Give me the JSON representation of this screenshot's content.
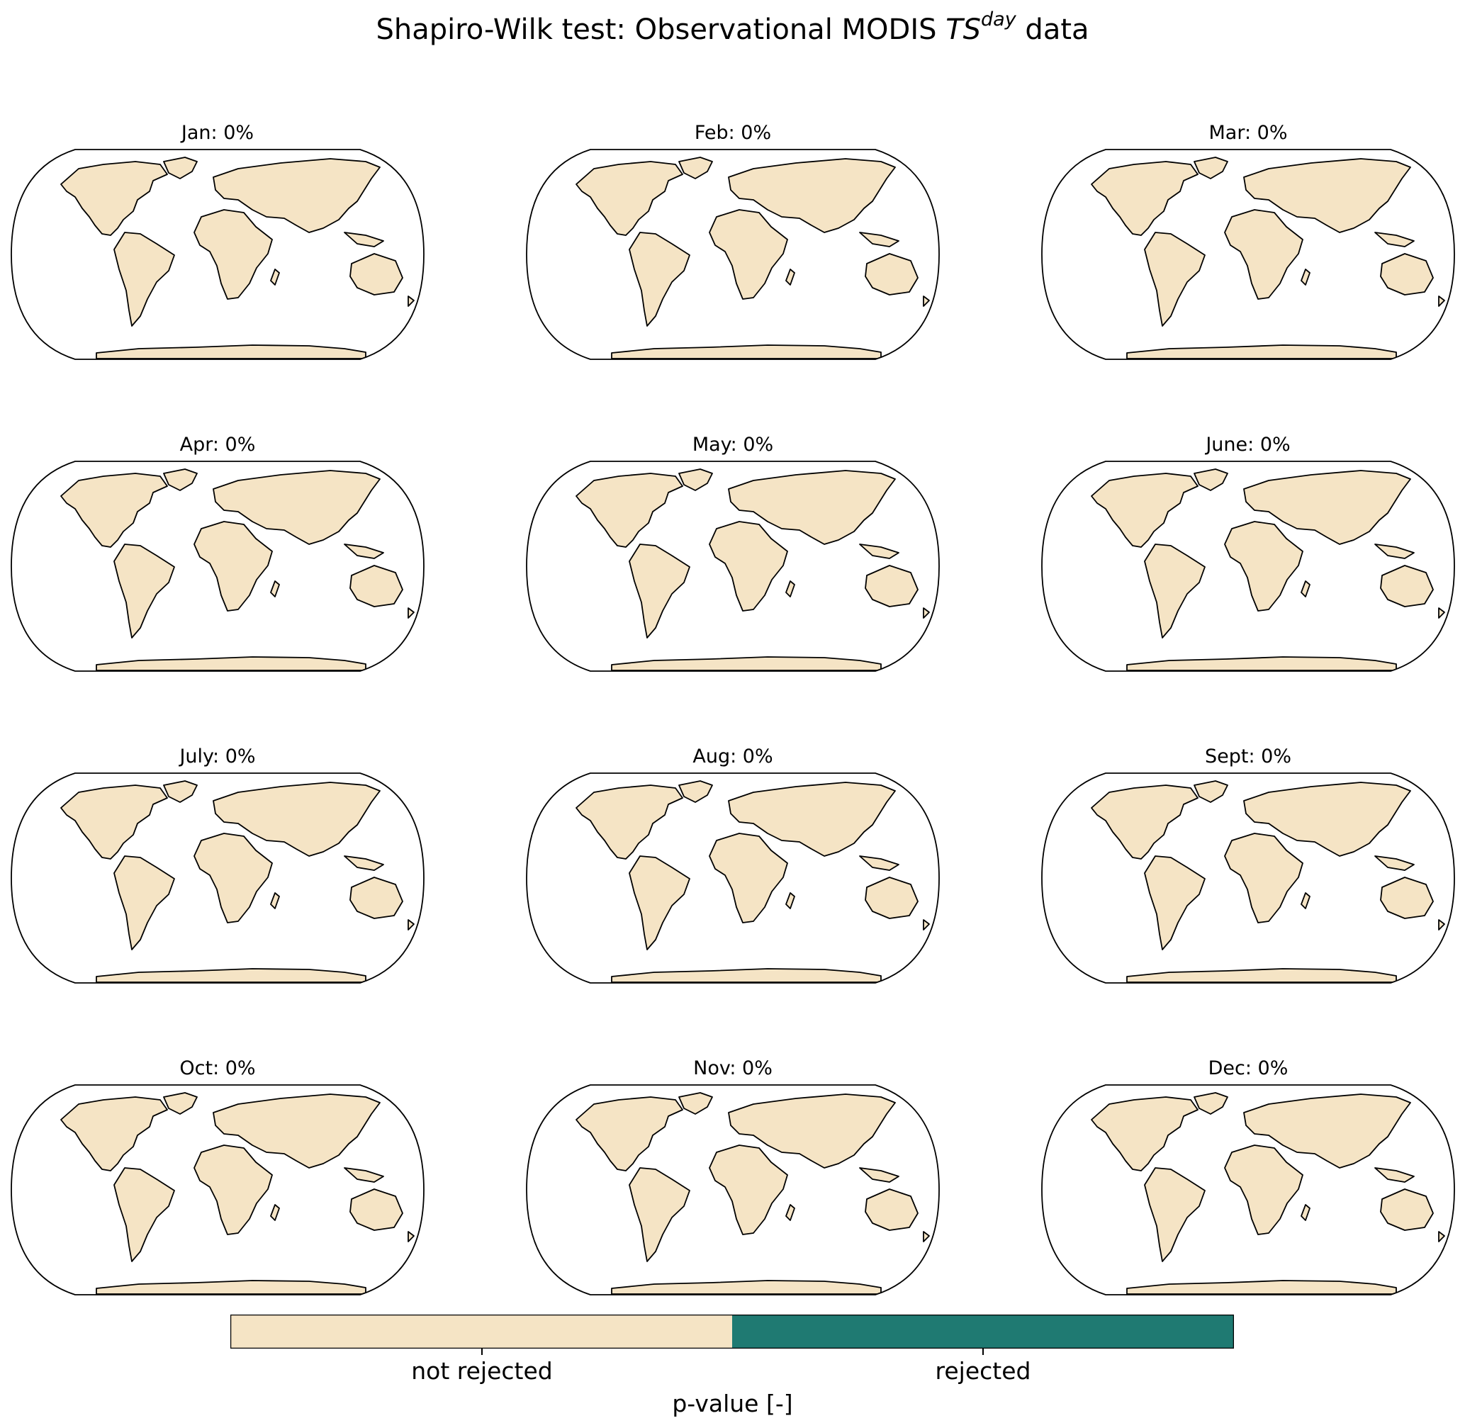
{
  "title": {
    "prefix": "Shapiro-Wilk test: Observational MODIS ",
    "variable": "TS",
    "superscript": "day",
    "suffix": " data"
  },
  "panels": [
    {
      "label": "Jan: 0%"
    },
    {
      "label": "Feb: 0%"
    },
    {
      "label": "Mar: 0%"
    },
    {
      "label": "Apr: 0%"
    },
    {
      "label": "May: 0%"
    },
    {
      "label": "June: 0%"
    },
    {
      "label": "July: 0%"
    },
    {
      "label": "Aug: 0%"
    },
    {
      "label": "Sept: 0%"
    },
    {
      "label": "Oct: 0%"
    },
    {
      "label": "Nov: 0%"
    },
    {
      "label": "Dec: 0%"
    }
  ],
  "colors": {
    "not_rejected": "#f5e4c5",
    "rejected": "#1f7a72",
    "ocean": "#ffffff",
    "outline": "#000000"
  },
  "colorbar": {
    "labels": [
      "not rejected",
      "rejected"
    ],
    "axis_label": "p-value [-]"
  }
}
